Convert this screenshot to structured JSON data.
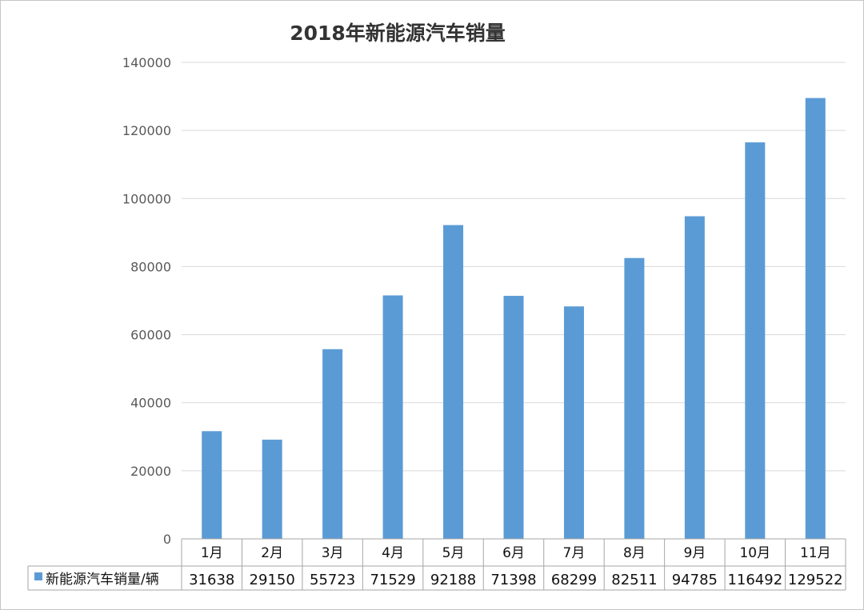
{
  "chart_data": {
    "type": "bar",
    "title": "2018年新能源汽车销量",
    "categories": [
      "1月",
      "2月",
      "3月",
      "4月",
      "5月",
      "6月",
      "7月",
      "8月",
      "9月",
      "10月",
      "11月"
    ],
    "series": [
      {
        "name": "新能源汽车销量/辆",
        "color": "#5b9bd5",
        "values": [
          31638,
          29150,
          55723,
          71529,
          92188,
          71398,
          68299,
          82511,
          94785,
          116492,
          129522
        ]
      }
    ],
    "y_ticks": [
      "0",
      "20000",
      "40000",
      "60000",
      "80000",
      "100000",
      "120000",
      "140000"
    ],
    "ylim": [
      0,
      140000
    ],
    "grid": true,
    "legend": "data-table",
    "data_table": true
  }
}
